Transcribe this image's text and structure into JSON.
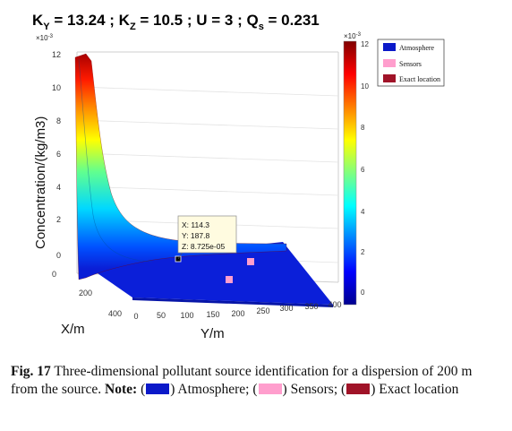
{
  "chart_data": {
    "type": "surface",
    "title": {
      "main": "K",
      "ky_sub": "Y",
      "ky_value": " = 13.24  ; K",
      "kz_sub": "Z",
      "kz_value": " = 10.5  ; U = 3 ; Q",
      "qs_sub": "s",
      "qs_value": " = 0.231"
    },
    "xlabel": "X/m",
    "ylabel": "Y/m",
    "zlabel": "Concentration/(kg/m3)",
    "x_ticks": [
      "0",
      "200",
      "400"
    ],
    "y_ticks": [
      "0",
      "50",
      "100",
      "150",
      "200",
      "250",
      "300",
      "350",
      "400"
    ],
    "z_ticks": [
      "0",
      "2",
      "4",
      "6",
      "8",
      "10",
      "12"
    ],
    "z_multiplier": "×10",
    "z_multiplier_exp": "-3",
    "xlim": [
      0,
      400
    ],
    "ylim": [
      0,
      400
    ],
    "zlim": [
      0,
      0.012
    ],
    "colorbar": {
      "ticks": [
        "0",
        "2",
        "4",
        "6",
        "8",
        "10",
        "12"
      ],
      "multiplier": "×10",
      "multiplier_exp": "-3",
      "range": [
        0,
        0.012
      ]
    },
    "legend": {
      "position": "top-right",
      "entries": [
        {
          "label": "Atmosphere",
          "color": "#0b19c9"
        },
        {
          "label": "Sensors",
          "color": "#ff9ecd"
        },
        {
          "label": "Exact location",
          "color": "#a01328"
        }
      ]
    },
    "surface_profile": {
      "description_units": "concentration along X at Y=0",
      "x": [
        0,
        10,
        20,
        40,
        60,
        100,
        150,
        200,
        300,
        400
      ],
      "z": [
        0.012,
        0.0119,
        0.0108,
        0.0075,
        0.0045,
        0.0019,
        0.0009,
        0.0004,
        0.0001,
        1e-05
      ]
    },
    "datatip": {
      "x": "X: 114.3",
      "y": "Y: 187.8",
      "z": "Z: 8.725e-05"
    },
    "sensors": [
      {
        "x": 114.3,
        "y": 230,
        "z": 0
      },
      {
        "x": 160,
        "y": 250,
        "z": 0
      },
      {
        "x": 250,
        "y": 210,
        "z": 0
      }
    ]
  },
  "caption": {
    "fig_label": "Fig. 17",
    "text": " Three-dimensional pollutant source identification for a dispersion of 200 m from the source. ",
    "note_label": "Note:",
    "atmosphere": " Atmosphere;",
    "sensors": " Sensors;",
    "exact": " Exact location",
    "colors": {
      "atmosphere": "#0b19c9",
      "sensors": "#ff9ecd",
      "exact": "#a01328"
    }
  }
}
